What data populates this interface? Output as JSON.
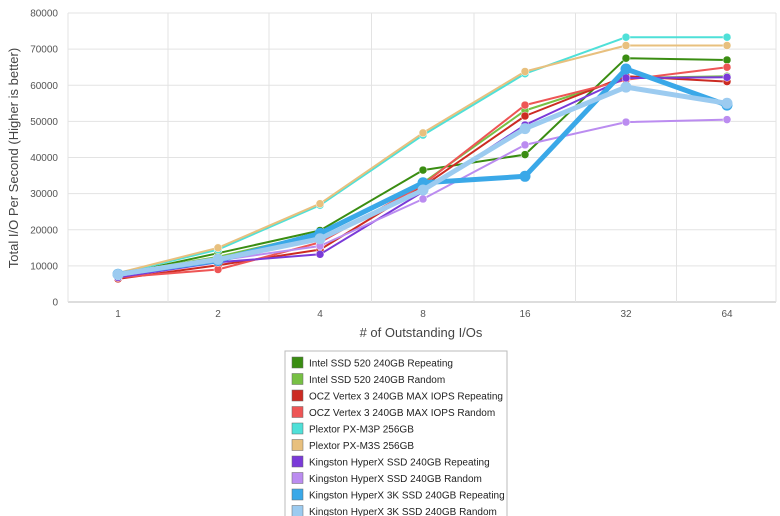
{
  "chart_data": {
    "type": "line",
    "title": "",
    "xlabel": "# of Outstanding I/Os",
    "ylabel": "Total I/O Per Second (Higher is better)",
    "categories": [
      "1",
      "2",
      "4",
      "8",
      "16",
      "32",
      "64"
    ],
    "ylim": [
      0,
      80000
    ],
    "yticks": [
      0,
      10000,
      20000,
      30000,
      40000,
      50000,
      60000,
      70000,
      80000
    ],
    "grid": true,
    "legend_position": "bottom",
    "series": [
      {
        "name": "Intel SSD 520 240GB Repeating",
        "color": "#3a8d12",
        "values": [
          7500,
          13500,
          19800,
          36500,
          40800,
          67500,
          67000
        ]
      },
      {
        "name": "Intel SSD 520 240GB Random",
        "color": "#77c044",
        "values": [
          7800,
          12500,
          19000,
          33000,
          53000,
          62000,
          62500
        ]
      },
      {
        "name": "OCZ Vertex 3 240GB MAX IOPS Repeating",
        "color": "#cc2b22",
        "values": [
          6400,
          10200,
          14500,
          32000,
          51500,
          62500,
          61000
        ]
      },
      {
        "name": "OCZ Vertex 3 240GB MAX IOPS Random",
        "color": "#ee5555",
        "values": [
          6800,
          9000,
          16500,
          32500,
          54500,
          61500,
          65000
        ]
      },
      {
        "name": "Plextor PX-M3P 256GB",
        "color": "#4fe0d8",
        "values": [
          7800,
          14500,
          26800,
          46200,
          63200,
          73300,
          73300
        ]
      },
      {
        "name": "Plextor PX-M3S 256GB",
        "color": "#e8c07e",
        "values": [
          8000,
          15000,
          27200,
          46800,
          63800,
          71000,
          71000
        ]
      },
      {
        "name": "Kingston HyperX SSD 240GB Repeating",
        "color": "#7a3ad8",
        "values": [
          6800,
          11000,
          13200,
          30500,
          49000,
          62000,
          62200
        ]
      },
      {
        "name": "Kingston HyperX SSD 240GB Random",
        "color": "#bb8cf0",
        "values": [
          7200,
          11500,
          15500,
          28500,
          43500,
          49800,
          50500
        ]
      },
      {
        "name": "Kingston HyperX 3K SSD 240GB Repeating",
        "color": "#3aa8e8",
        "values": [
          7700,
          11500,
          19000,
          33000,
          34800,
          64500,
          54500
        ]
      },
      {
        "name": "Kingston HyperX 3K SSD 240GB Random",
        "color": "#9ccbf0",
        "values": [
          7600,
          11800,
          17500,
          31000,
          48000,
          59500,
          55000
        ]
      }
    ]
  }
}
